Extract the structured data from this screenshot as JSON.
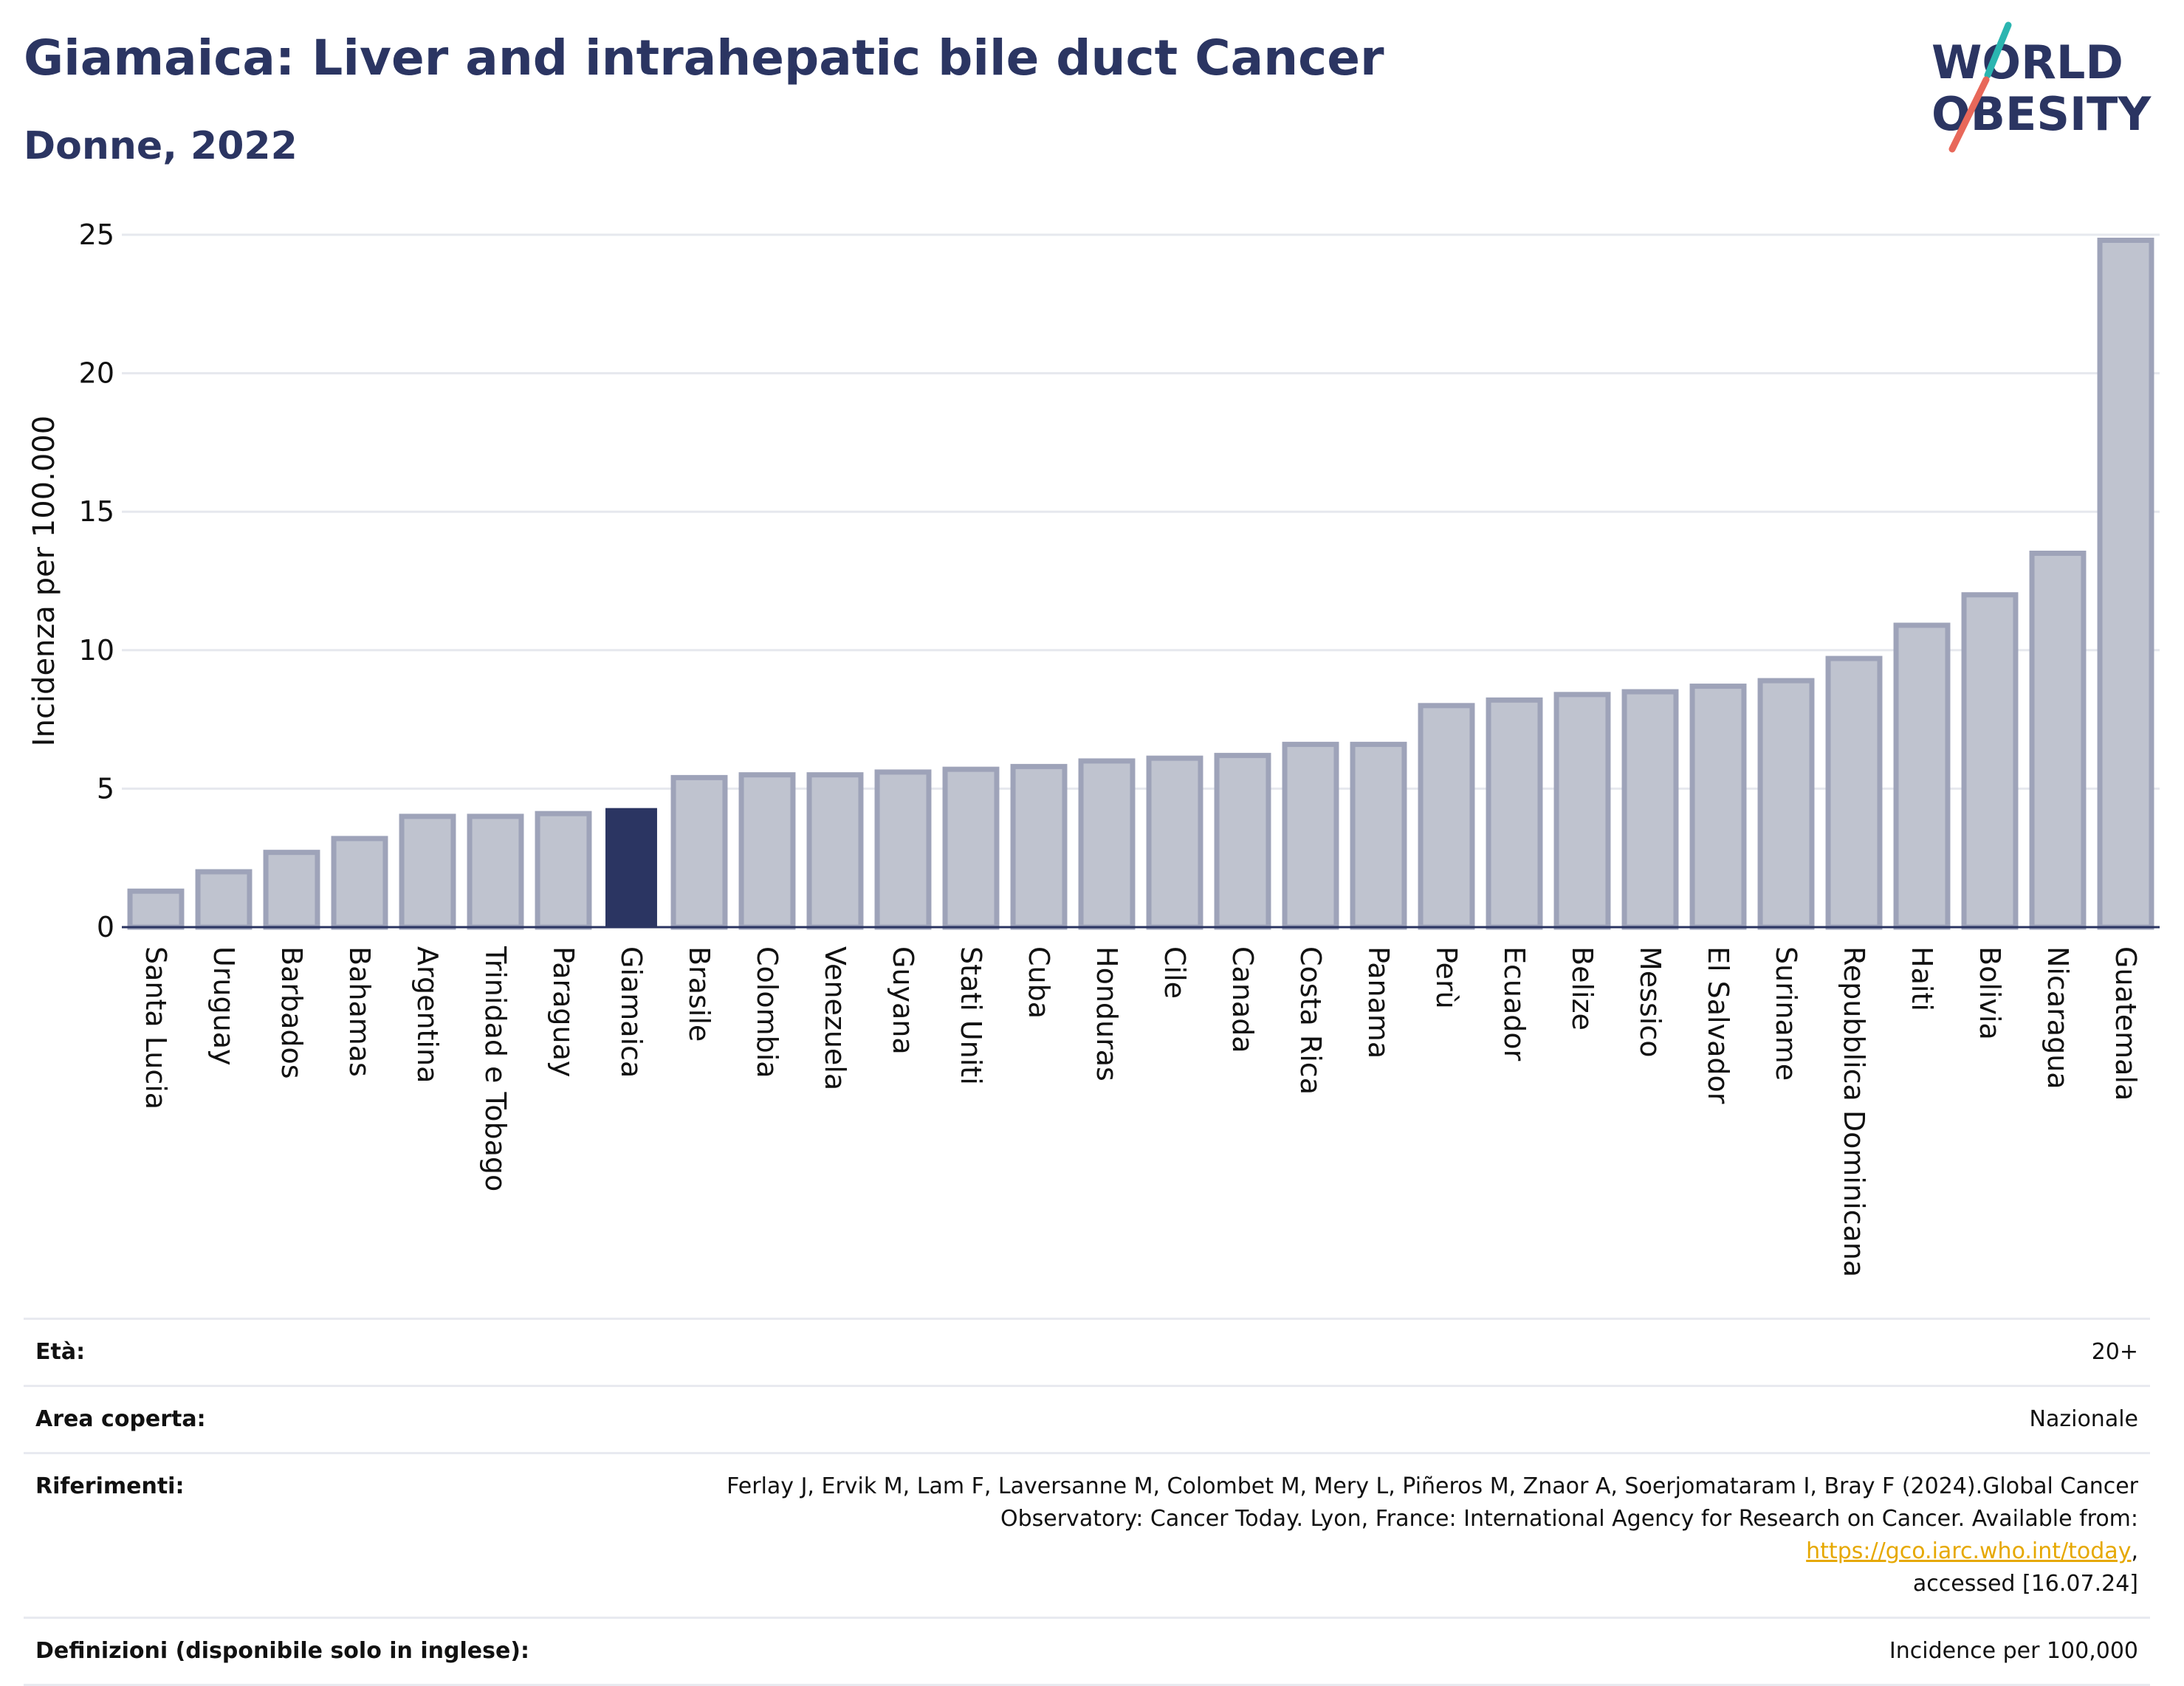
{
  "header": {
    "title": "Giamaica: Liver and intrahepatic bile duct Cancer",
    "subtitle": "Donne, 2022"
  },
  "logo": {
    "line1": "WORLD",
    "line2": "OBESITY",
    "colors": {
      "text": "#2b3562",
      "slash_top": "#2bb5b0",
      "slash_bottom": "#e8685a"
    }
  },
  "chart_data": {
    "type": "bar",
    "title": "Giamaica: Liver and intrahepatic bile duct Cancer",
    "subtitle": "Donne, 2022",
    "xlabel": "",
    "ylabel": "Incidenza per 100.000",
    "ylim": [
      0,
      25
    ],
    "yticks": [
      0,
      5,
      10,
      15,
      20,
      25
    ],
    "grid": true,
    "highlight": "Giamaica",
    "colors": {
      "bar": "#bfc3cf",
      "bar_edge": "#9ea3b9",
      "highlight": "#2b3562",
      "grid": "#e6e8ee"
    },
    "categories": [
      "Santa Lucia",
      "Uruguay",
      "Barbados",
      "Bahamas",
      "Argentina",
      "Trinidad e Tobago",
      "Paraguay",
      "Giamaica",
      "Brasile",
      "Colombia",
      "Venezuela",
      "Guyana",
      "Stati Uniti",
      "Cuba",
      "Honduras",
      "Cile",
      "Canada",
      "Costa Rica",
      "Panama",
      "Perù",
      "Ecuador",
      "Belize",
      "Messico",
      "El Salvador",
      "Suriname",
      "Repubblica Dominicana",
      "Haiti",
      "Bolivia",
      "Nicaragua",
      "Guatemala"
    ],
    "values": [
      1.3,
      2.0,
      2.7,
      3.2,
      4.0,
      4.0,
      4.1,
      4.3,
      5.4,
      5.5,
      5.5,
      5.6,
      5.7,
      5.8,
      6.0,
      6.1,
      6.2,
      6.6,
      6.6,
      8.0,
      8.2,
      8.4,
      8.5,
      8.7,
      8.9,
      9.7,
      10.9,
      12.0,
      13.5,
      24.8
    ]
  },
  "info": {
    "age_label": "Età:",
    "age_value": "20+",
    "area_label": "Area coperta:",
    "area_value": "Nazionale",
    "refs_label": "Riferimenti:",
    "refs_text1": "Ferlay J, Ervik M, Lam F, Laversanne M, Colombet M, Mery L, Piñeros M, Znaor A, Soerjomataram I, Bray F (2024).Global Cancer",
    "refs_text2": "Observatory: Cancer Today. Lyon, France: International Agency for Research on Cancer. Available from:",
    "refs_link": "https://gco.iarc.who.int/today",
    "refs_text3": ",",
    "refs_text4": "accessed [16.07.24]",
    "def_label": "Definizioni (disponibile solo in inglese):",
    "def_value": "Incidence per 100,000"
  }
}
